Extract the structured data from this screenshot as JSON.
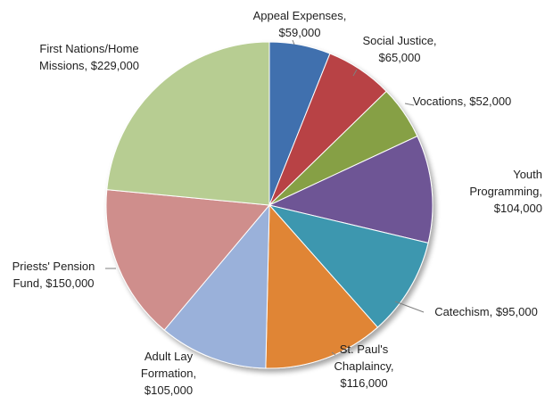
{
  "chart_data": {
    "type": "pie",
    "title": "",
    "start_angle_deg": 0,
    "direction": "clockwise",
    "slices": [
      {
        "name": "Appeal Expenses",
        "value": 59000,
        "label": [
          "Appeal Expenses,",
          "$59,000"
        ],
        "color": "#3F6FAE"
      },
      {
        "name": "Social Justice",
        "value": 65000,
        "label": [
          "Social Justice,",
          "$65,000"
        ],
        "color": "#B84344"
      },
      {
        "name": "Vocations",
        "value": 52000,
        "label": [
          "Vocations,  $52,000"
        ],
        "color": "#86A044"
      },
      {
        "name": "Youth Programming",
        "value": 104000,
        "label": [
          "Youth",
          "Programming,",
          "$104,000"
        ],
        "color": "#6E5595"
      },
      {
        "name": "Catechism",
        "value": 95000,
        "label": [
          "Catechism,  $95,000"
        ],
        "color": "#3C97AF"
      },
      {
        "name": "St. Paul's Chaplaincy",
        "value": 116000,
        "label": [
          "St. Paul's",
          "Chaplaincy,",
          "$116,000"
        ],
        "color": "#E08536"
      },
      {
        "name": "Adult Lay Formation",
        "value": 105000,
        "label": [
          "Adult Lay",
          "Formation,",
          "$105,000"
        ],
        "color": "#9AB1DA"
      },
      {
        "name": "Priests' Pension Fund",
        "value": 150000,
        "label": [
          "Priests' Pension",
          "Fund,  $150,000"
        ],
        "color": "#CF8E8C"
      },
      {
        "name": "First Nations/Home Missions",
        "value": 229000,
        "label": [
          "First Nations/Home",
          "Missions,  $229,000"
        ],
        "color": "#B7CD92"
      }
    ]
  }
}
